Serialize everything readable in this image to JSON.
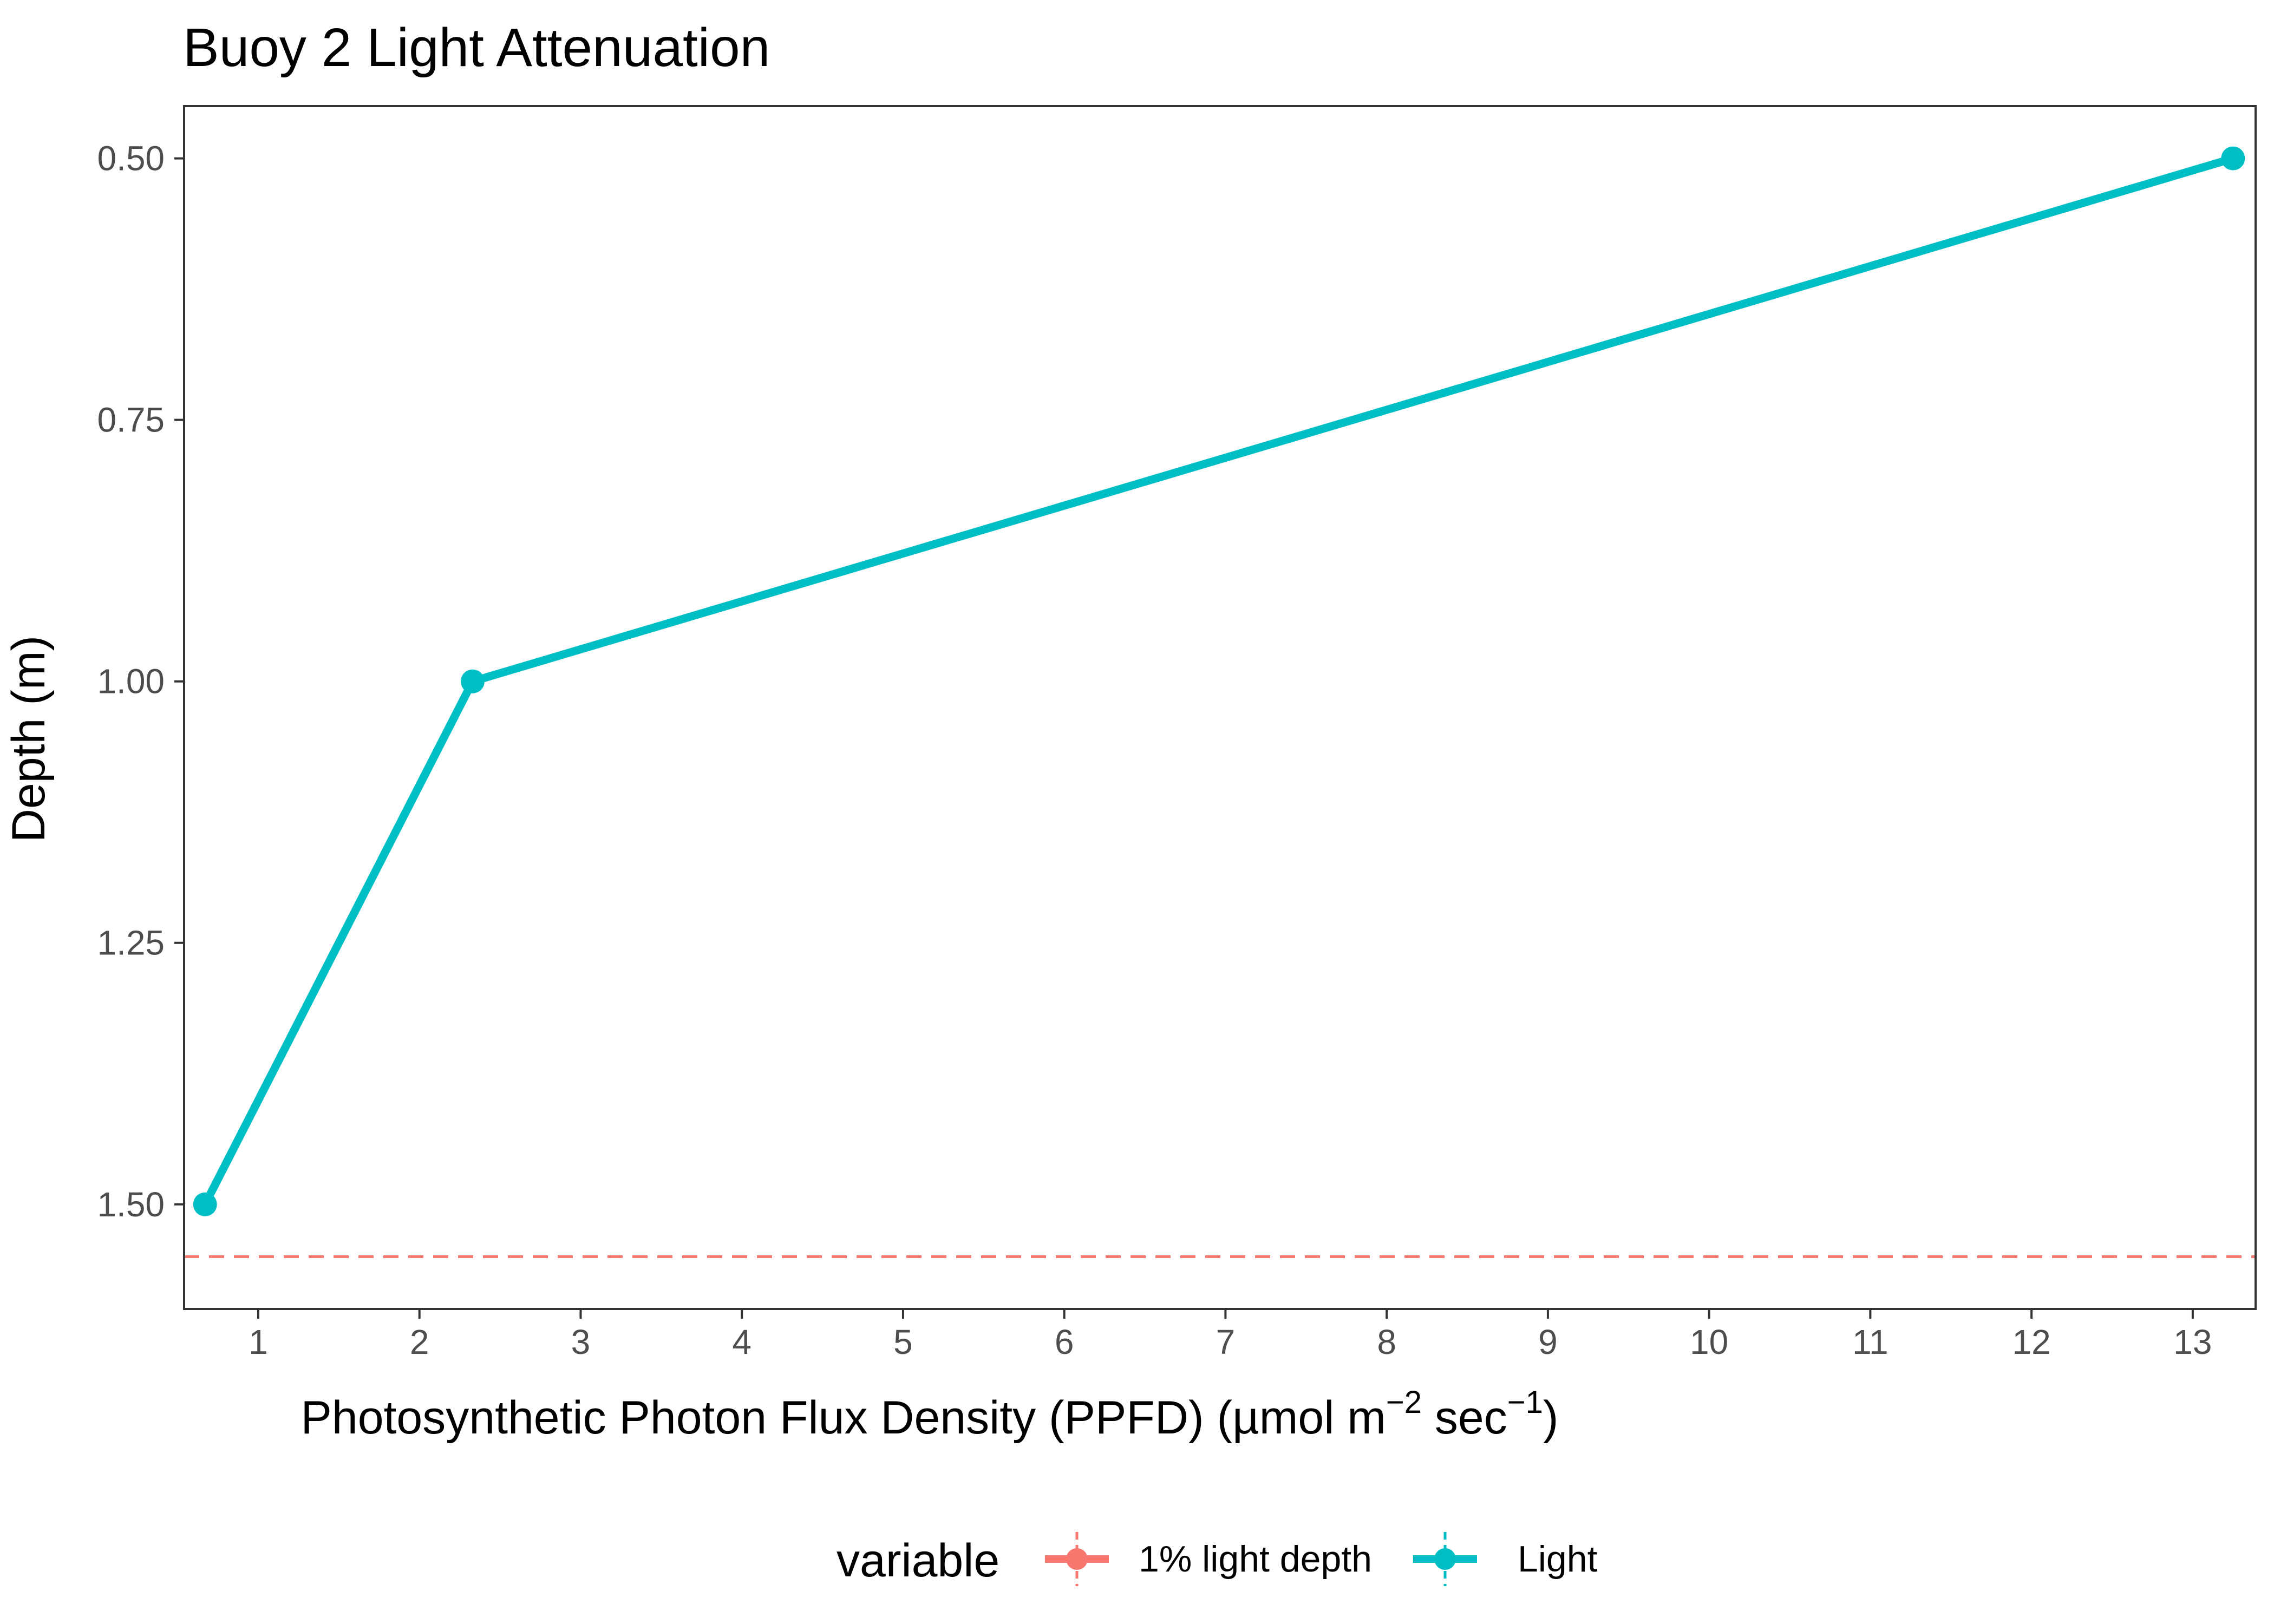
{
  "chart_data": {
    "type": "line",
    "title": "Buoy 2 Light Attenuation",
    "xlabel": {
      "main": "Photosynthetic Photon Flux Density (PPFD) (µmol m",
      "sup1": "−2",
      "mid": " sec",
      "sup2": "−1",
      "end": ")"
    },
    "ylabel": "Depth (m)",
    "x_ticks": [
      1,
      2,
      3,
      4,
      5,
      6,
      7,
      8,
      9,
      10,
      11,
      12,
      13
    ],
    "y_ticks": [
      0.5,
      0.75,
      1.0,
      1.25,
      1.5
    ],
    "y_tick_labels": [
      "0.50",
      "0.75",
      "1.00",
      "1.25",
      "1.50"
    ],
    "xlim": [
      0.54,
      13.39
    ],
    "ylim": [
      0.45,
      1.6
    ],
    "y_reversed": true,
    "grid": false,
    "legend_position": "bottom",
    "legend_title": "variable",
    "series": [
      {
        "name": "Light",
        "color": "#00BFC4",
        "points": [
          {
            "x": 0.67,
            "y": 1.5
          },
          {
            "x": 2.33,
            "y": 1.0
          },
          {
            "x": 13.25,
            "y": 0.5
          }
        ]
      }
    ],
    "reference_lines": [
      {
        "name": "1% light depth",
        "orientation": "horizontal",
        "y": 1.55,
        "color": "#F8766D",
        "style": "dashed"
      }
    ],
    "legend_entries": [
      {
        "label": "1% light depth",
        "color": "#F8766D"
      },
      {
        "label": "Light",
        "color": "#00BFC4"
      }
    ]
  }
}
